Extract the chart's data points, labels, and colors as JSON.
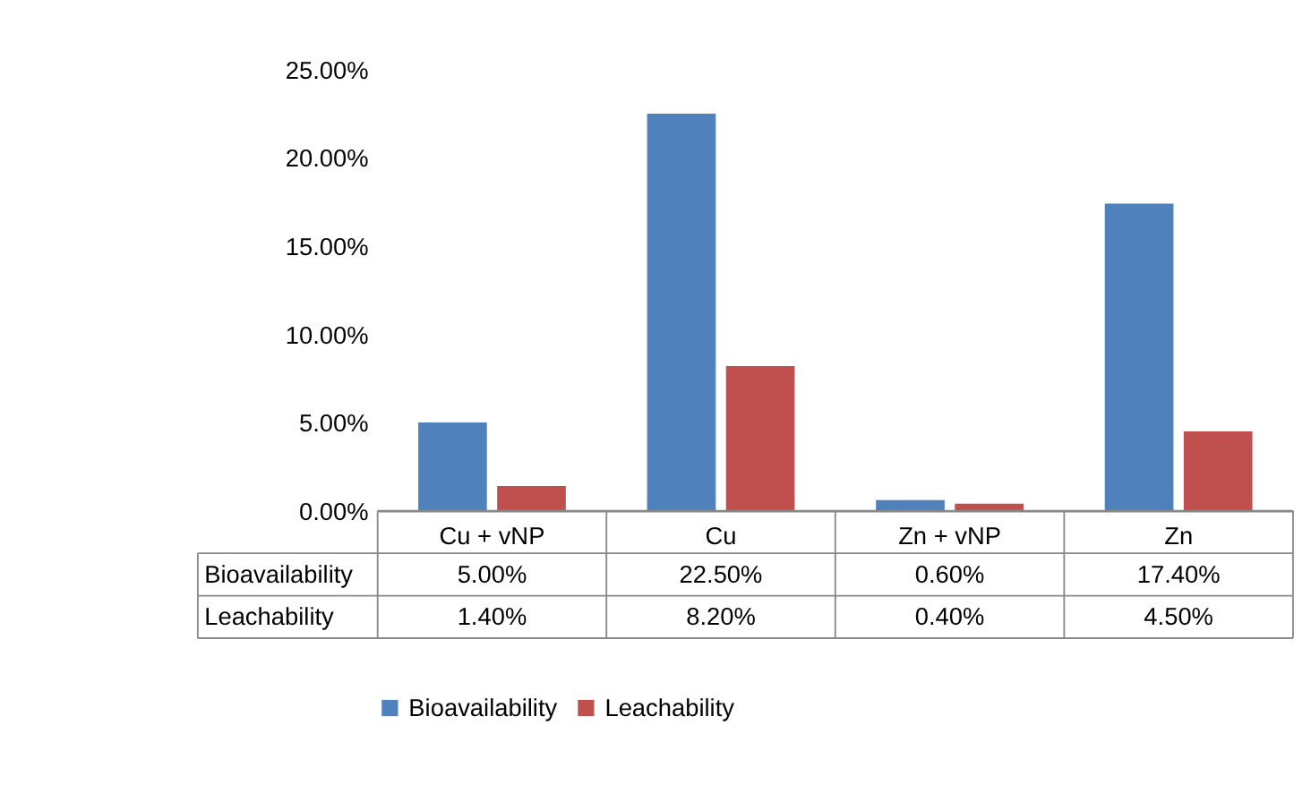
{
  "chart_data": {
    "type": "bar",
    "categories": [
      "Cu + vNP",
      "Cu",
      "Zn + vNP",
      "Zn"
    ],
    "series": [
      {
        "name": "Bioavailability",
        "color": "#4f81bd",
        "values": [
          5.0,
          22.5,
          0.6,
          17.4
        ],
        "value_labels": [
          "5.00%",
          "22.50%",
          "0.60%",
          "17.40%"
        ]
      },
      {
        "name": "Leachability",
        "color": "#c0504d",
        "values": [
          1.4,
          8.2,
          0.4,
          4.5
        ],
        "value_labels": [
          "1.40%",
          "8.20%",
          "0.40%",
          "4.50%"
        ]
      }
    ],
    "ylim": [
      0,
      25
    ],
    "yticks": [
      {
        "value": 0,
        "label": "0.00%"
      },
      {
        "value": 5,
        "label": "5.00%"
      },
      {
        "value": 10,
        "label": "10.00%"
      },
      {
        "value": 15,
        "label": "15.00%"
      },
      {
        "value": 20,
        "label": "20.00%"
      },
      {
        "value": 25,
        "label": "25.00%"
      }
    ],
    "legend": "bottom"
  }
}
